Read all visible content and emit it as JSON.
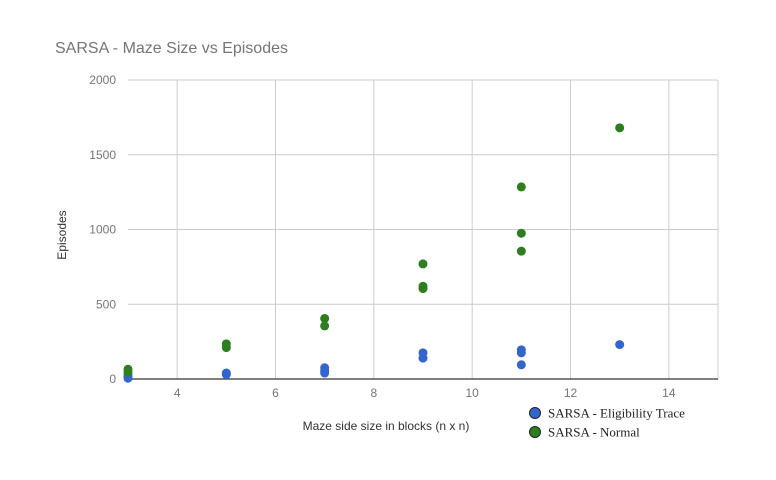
{
  "chart_data": {
    "type": "scatter",
    "title": "SARSA - Maze Size vs Episodes",
    "xlabel": "Maze side size in blocks (n x n)",
    "ylabel": "Episodes",
    "xlim": [
      3,
      15
    ],
    "ylim": [
      0,
      2000
    ],
    "x_ticks": [
      4,
      6,
      8,
      10,
      12,
      14
    ],
    "y_ticks": [
      0,
      500,
      1000,
      1500,
      2000
    ],
    "grid": true,
    "legend_position": "bottom-right",
    "series": [
      {
        "name": "SARSA - Eligibility Trace",
        "color": "#3366cc",
        "points": [
          {
            "x": 3,
            "y": 5
          },
          {
            "x": 3,
            "y": 15
          },
          {
            "x": 3,
            "y": 25
          },
          {
            "x": 5,
            "y": 30
          },
          {
            "x": 5,
            "y": 40
          },
          {
            "x": 7,
            "y": 40
          },
          {
            "x": 7,
            "y": 55
          },
          {
            "x": 7,
            "y": 75
          },
          {
            "x": 9,
            "y": 140
          },
          {
            "x": 9,
            "y": 175
          },
          {
            "x": 11,
            "y": 95
          },
          {
            "x": 11,
            "y": 175
          },
          {
            "x": 11,
            "y": 195
          },
          {
            "x": 13,
            "y": 230
          }
        ]
      },
      {
        "name": "SARSA - Normal",
        "color": "#2e7d1e",
        "points": [
          {
            "x": 3,
            "y": 45
          },
          {
            "x": 3,
            "y": 65
          },
          {
            "x": 5,
            "y": 210
          },
          {
            "x": 5,
            "y": 235
          },
          {
            "x": 7,
            "y": 355
          },
          {
            "x": 7,
            "y": 405
          },
          {
            "x": 9,
            "y": 605
          },
          {
            "x": 9,
            "y": 620
          },
          {
            "x": 9,
            "y": 770
          },
          {
            "x": 11,
            "y": 855
          },
          {
            "x": 11,
            "y": 975
          },
          {
            "x": 11,
            "y": 1285
          },
          {
            "x": 13,
            "y": 1680
          }
        ]
      }
    ]
  }
}
